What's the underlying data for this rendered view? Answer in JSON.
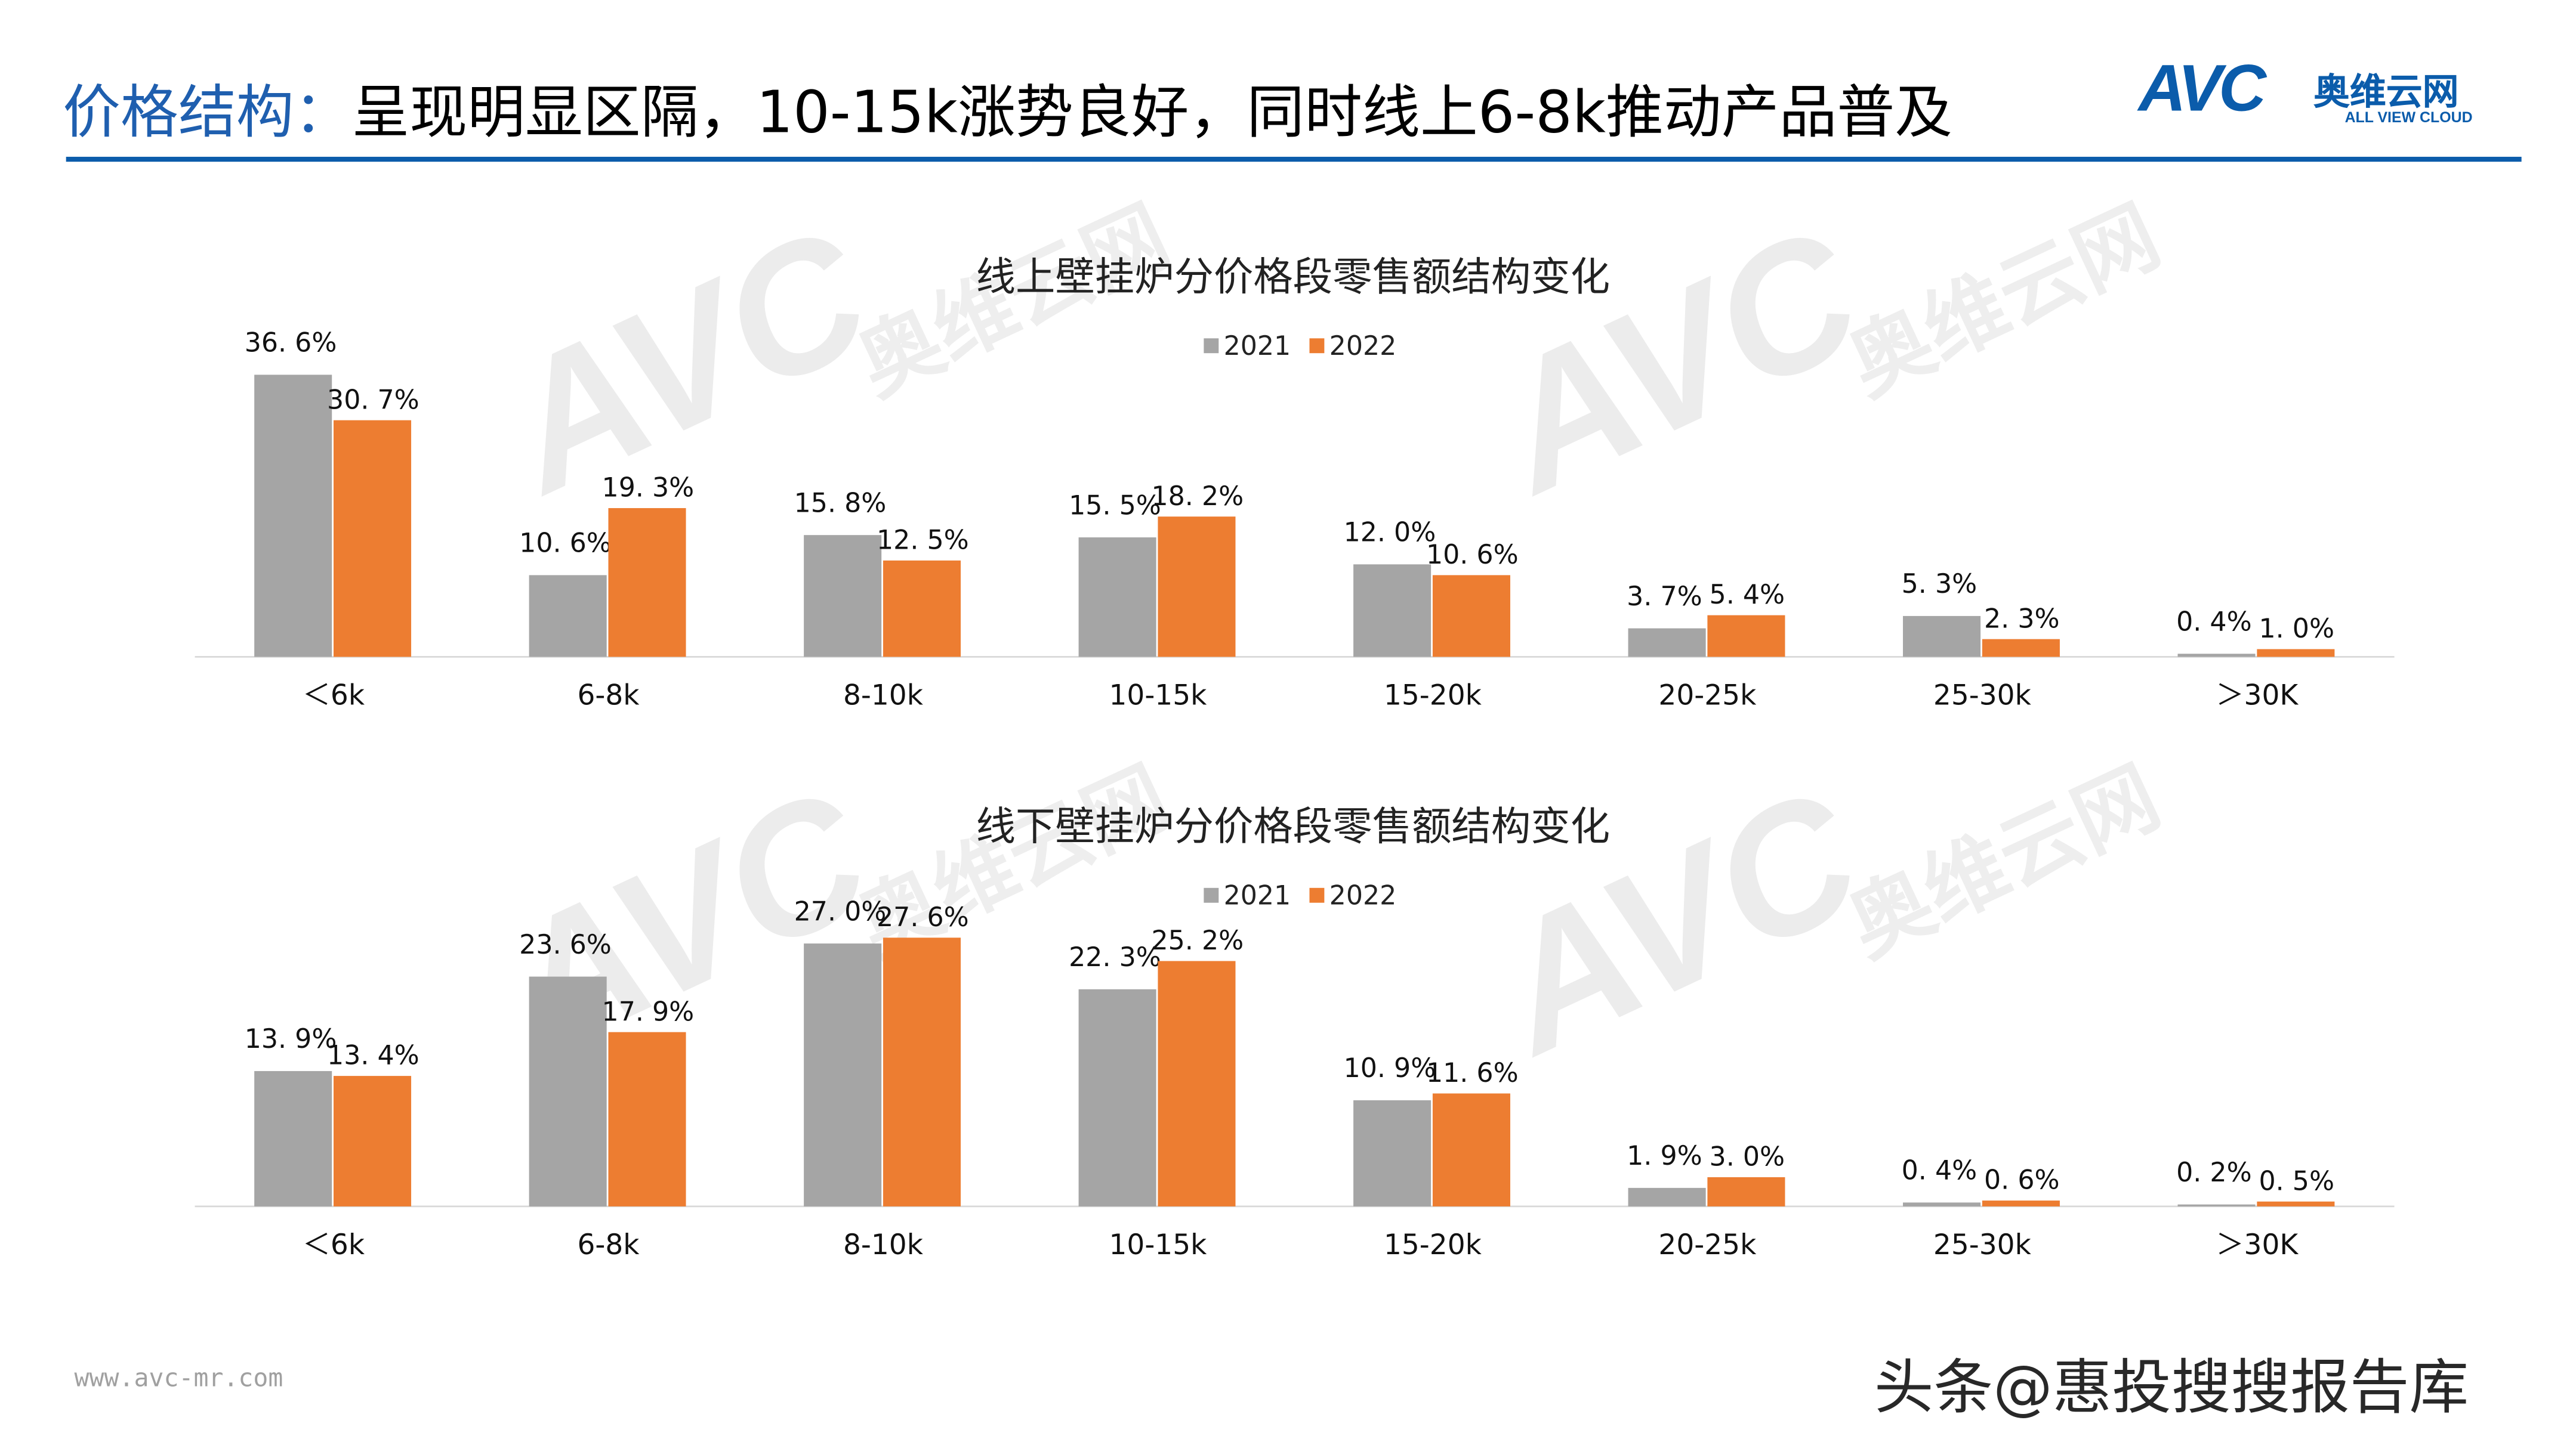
{
  "header": {
    "title_highlight": "价格结构：",
    "title_rest": "呈现明显区隔，10-15k涨势良好，同时线上6-8k推动产品普及",
    "logo": {
      "mark": "AVC",
      "cn": "奥维云网",
      "en": "ALL VIEW CLOUD"
    }
  },
  "colors": {
    "accent": "#0B5CAB",
    "series_2021": "#A5A5A5",
    "series_2022": "#ED7D31"
  },
  "chart_data": [
    {
      "type": "bar",
      "title": "线上壁挂炉分价格段零售额结构变化",
      "categories": [
        "＜6k",
        "6-8k",
        "8-10k",
        "10-15k",
        "15-20k",
        "20-25k",
        "25-30k",
        "＞30K"
      ],
      "series": [
        {
          "name": "2021",
          "values": [
            36.6,
            10.6,
            15.8,
            15.5,
            12.0,
            3.7,
            5.3,
            0.4
          ],
          "labels": [
            "36. 6%",
            "10. 6%",
            "15. 8%",
            "15. 5%",
            "12. 0%",
            "3. 7%",
            "5. 3%",
            "0. 4%"
          ]
        },
        {
          "name": "2022",
          "values": [
            30.7,
            19.3,
            12.5,
            18.2,
            10.6,
            5.4,
            2.3,
            1.0
          ],
          "labels": [
            "30. 7%",
            "19. 3%",
            "12. 5%",
            "18. 2%",
            "10. 6%",
            "5. 4%",
            "2. 3%",
            "1. 0%"
          ]
        }
      ],
      "legend": "top-center",
      "grid": false,
      "ylim": [
        0,
        40
      ]
    },
    {
      "type": "bar",
      "title": "线下壁挂炉分价格段零售额结构变化",
      "categories": [
        "＜6k",
        "6-8k",
        "8-10k",
        "10-15k",
        "15-20k",
        "20-25k",
        "25-30k",
        "＞30K"
      ],
      "series": [
        {
          "name": "2021",
          "values": [
            13.9,
            23.6,
            27.0,
            22.3,
            10.9,
            1.9,
            0.4,
            0.2
          ],
          "labels": [
            "13. 9%",
            "23. 6%",
            "27. 0%",
            "22. 3%",
            "10. 9%",
            "1. 9%",
            "0. 4%",
            "0. 2%"
          ]
        },
        {
          "name": "2022",
          "values": [
            13.4,
            17.9,
            27.6,
            25.2,
            11.6,
            3.0,
            0.6,
            0.5
          ],
          "labels": [
            "13. 4%",
            "17. 9%",
            "27. 6%",
            "25. 2%",
            "11. 6%",
            "3. 0%",
            "0. 6%",
            "0. 5%"
          ]
        }
      ],
      "legend": "top-center",
      "grid": false,
      "ylim": [
        0,
        30
      ]
    }
  ],
  "footer": {
    "url": "www.avc-mr.com",
    "watermark": "头条@惠投搜搜报告库"
  }
}
